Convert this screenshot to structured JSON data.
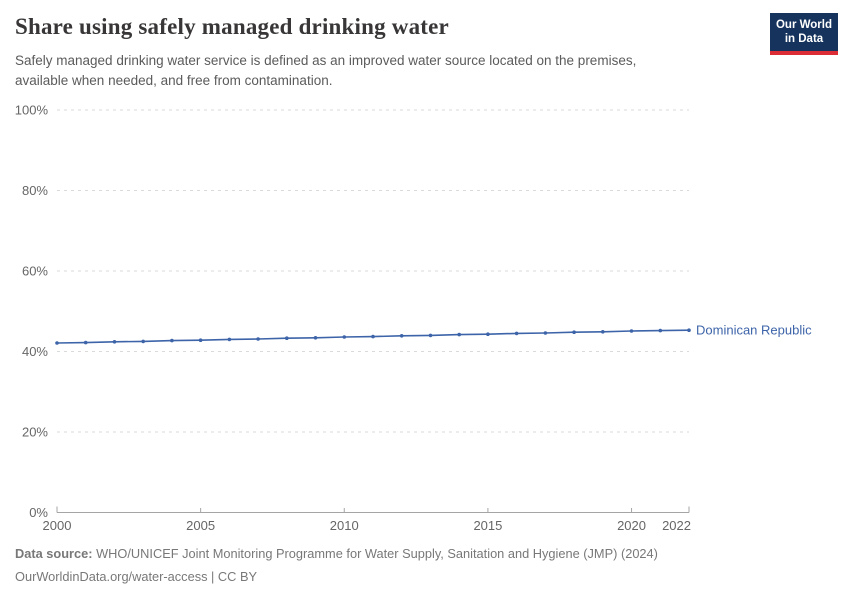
{
  "header": {
    "title": "Share using safely managed drinking water",
    "subtitle": "Safely managed drinking water service is defined as an improved water source located on the premises, available when needed, and free from contamination.",
    "logo_line1": "Our World",
    "logo_line2": "in Data"
  },
  "chart_data": {
    "type": "line",
    "title": "Share using safely managed drinking water",
    "x": [
      2000,
      2001,
      2002,
      2003,
      2004,
      2005,
      2006,
      2007,
      2008,
      2009,
      2010,
      2011,
      2012,
      2013,
      2014,
      2015,
      2016,
      2017,
      2018,
      2019,
      2020,
      2021,
      2022
    ],
    "series": [
      {
        "name": "Dominican Republic",
        "values": [
          42.1,
          42.2,
          42.4,
          42.5,
          42.7,
          42.8,
          43.0,
          43.1,
          43.3,
          43.4,
          43.6,
          43.7,
          43.9,
          44.0,
          44.2,
          44.3,
          44.5,
          44.6,
          44.8,
          44.9,
          45.1,
          45.2,
          45.3
        ]
      }
    ],
    "xlim": [
      2000,
      2022
    ],
    "ylim": [
      0,
      100
    ],
    "x_ticks": [
      2000,
      2005,
      2010,
      2015,
      2020,
      2022
    ],
    "y_ticks": [
      0,
      20,
      40,
      60,
      80,
      100
    ],
    "y_tick_suffix": "%",
    "grid": "horizontal-dashed",
    "legend_position": "end-of-line"
  },
  "footer": {
    "source_label": "Data source:",
    "source_text": " WHO/UNICEF Joint Monitoring Programme for Water Supply, Sanitation and Hygiene (JMP) (2024)",
    "license_line": "OurWorldinData.org/water-access | CC BY"
  },
  "colors": {
    "series_blue": "#3d64a9",
    "title_text": "#383636",
    "subtitle_text": "#5b5b5b",
    "tick_text": "#666666",
    "grid_line": "#dadada",
    "axis_line": "#a5a5a5",
    "logo_bg": "#15335d",
    "logo_accent": "#dc2c36",
    "footer_text": "#787878"
  }
}
